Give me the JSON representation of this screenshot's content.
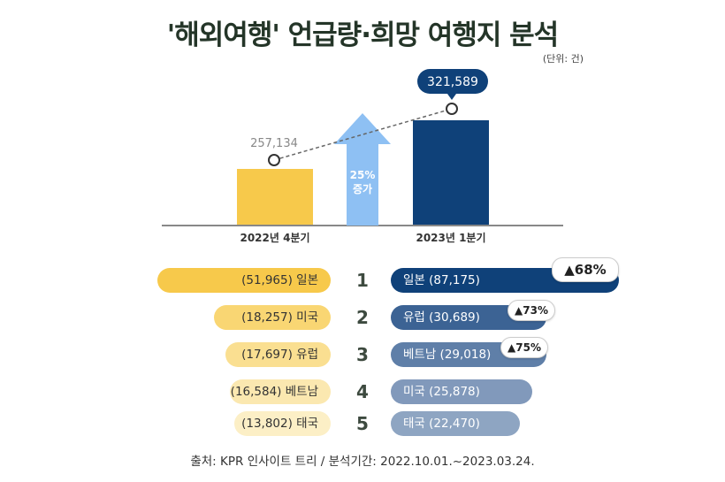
{
  "title": "'해외여행' 언급량·희망 여행지 분석",
  "unit": "(단위: 건)",
  "chart_data": [
    {
      "type": "bar",
      "categories": [
        "2022년 4분기",
        "2023년 1분기"
      ],
      "values": [
        257134,
        321589
      ],
      "value_labels": [
        "257,134",
        "321,589"
      ],
      "increase_label_line1": "25%",
      "increase_label_line2": "증가",
      "colors": [
        "#f7c94b",
        "#0f4179"
      ]
    },
    {
      "type": "bar",
      "orientation": "horizontal",
      "ranks": [
        "1",
        "2",
        "3",
        "4",
        "5"
      ],
      "series": [
        {
          "period": "2022년 4분기",
          "labels": [
            "(51,965) 일본",
            "(18,257) 미국",
            "(17,697) 유럽",
            "(16,584) 베트남",
            "(13,802) 태국"
          ],
          "values": [
            51965,
            18257,
            17697,
            16584,
            13802
          ]
        },
        {
          "period": "2023년 1분기",
          "labels": [
            "일본 (87,175)",
            "유럽 (30,689)",
            "베트남 (29,018)",
            "미국 (25,878)",
            "태국 (22,470)"
          ],
          "values": [
            87175,
            30689,
            29018,
            25878,
            22470
          ],
          "growth": [
            "▲68%",
            "▲73%",
            "▲75%",
            "",
            ""
          ]
        }
      ],
      "left_colors": [
        "#f7c94b",
        "#f9d673",
        "#fadf91",
        "#fbe8b0",
        "#fcefc6"
      ],
      "right_colors": [
        "#0f4179",
        "#3c6394",
        "#5f7fa8",
        "#8199bb",
        "#8ea5c2"
      ]
    }
  ],
  "source": "출처: KPR 인사이트 트리 / 분석기간: 2022.10.01.~2023.03.24."
}
